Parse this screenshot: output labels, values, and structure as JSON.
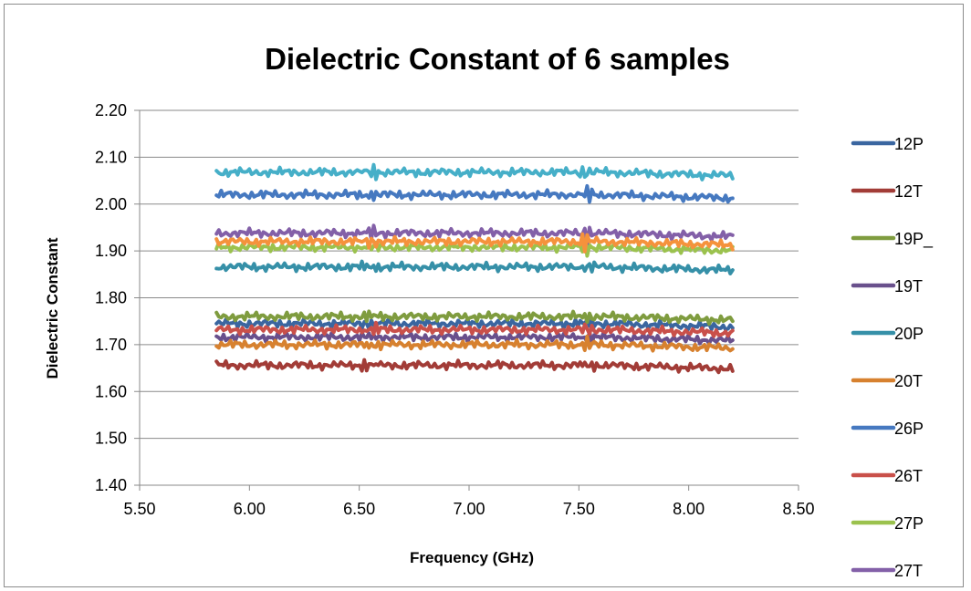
{
  "chart_data": {
    "type": "line",
    "title": "Dielectric Constant of 6 samples",
    "xlabel": "Frequency (GHz)",
    "ylabel": "Dielectric Constant",
    "xlim": [
      5.5,
      8.5
    ],
    "ylim": [
      1.4,
      2.2
    ],
    "x_ticks": [
      "5.50",
      "6.00",
      "6.50",
      "7.00",
      "7.50",
      "8.00",
      "8.50"
    ],
    "y_ticks": [
      "2.20",
      "2.10",
      "2.00",
      "1.90",
      "1.80",
      "1.70",
      "1.60",
      "1.50",
      "1.40"
    ],
    "grid": "horizontal",
    "legend_position": "right",
    "x_range": [
      5.85,
      8.2
    ],
    "series": [
      {
        "name": "12P",
        "color": "#3a66a0",
        "level": 1.745
      },
      {
        "name": "12T",
        "color": "#a23c37",
        "level": 1.656
      },
      {
        "name": "19P_",
        "color": "#7f9c3f",
        "level": 1.76
      },
      {
        "name": "19T",
        "color": "#69508c",
        "level": 1.716
      },
      {
        "name": "20P",
        "color": "#3690a8",
        "level": 1.866
      },
      {
        "name": "20T",
        "color": "#d7812f",
        "level": 1.7
      },
      {
        "name": "26P",
        "color": "#4679c0",
        "level": 2.02
      },
      {
        "name": "26T",
        "color": "#c9504a",
        "level": 1.732
      },
      {
        "name": "27P",
        "color": "#9bc24e",
        "level": 1.908
      },
      {
        "name": "27T",
        "color": "#8360a8",
        "level": 1.938
      },
      {
        "name": "",
        "color": "#46afc8",
        "level": 2.068
      },
      {
        "name": "",
        "color": "#f5923c",
        "level": 1.92
      }
    ]
  }
}
